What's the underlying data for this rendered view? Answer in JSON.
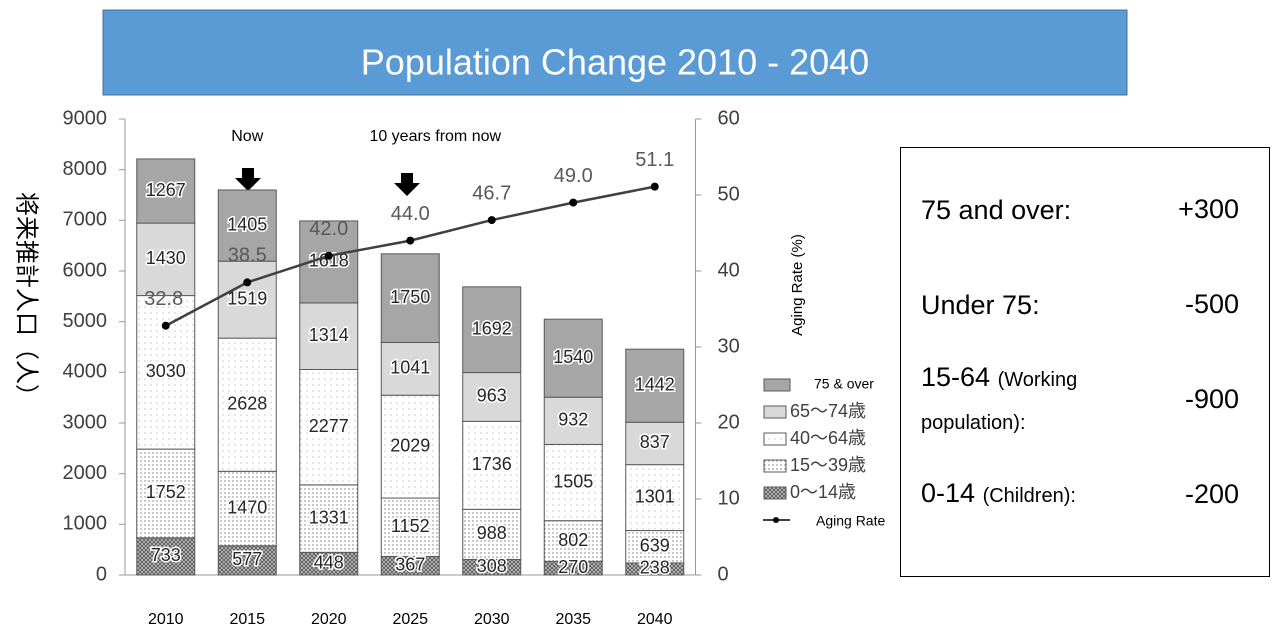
{
  "chart_data": {
    "type": "stacked-bar-line",
    "title": "Population Change 2010 - 2040",
    "ylabel": "将来推計人口（人）",
    "y2label": "Aging Rate (%)",
    "annotations": [
      {
        "text": "Now",
        "category": 1
      },
      {
        "text": "10 years from now",
        "category": 3
      }
    ],
    "categories": [
      "2010",
      "2015",
      "2020",
      "2025",
      "2030",
      "2035",
      "2040"
    ],
    "series": [
      {
        "name": "0～14歳",
        "color": "#bfbfbf",
        "pattern": "crosshatch",
        "values": [
          733,
          577,
          448,
          367,
          308,
          270,
          238
        ]
      },
      {
        "name": "15～39歳",
        "color": "#ffffff",
        "pattern": "dense-dots",
        "values": [
          1752,
          1470,
          1331,
          1152,
          988,
          802,
          639
        ]
      },
      {
        "name": "40～64歳",
        "color": "#ffffff",
        "pattern": "dots",
        "values": [
          3030,
          2628,
          2277,
          2029,
          1736,
          1505,
          1301
        ]
      },
      {
        "name": "65～74歳",
        "color": "#d9d9d9",
        "values": [
          1430,
          1519,
          1314,
          1041,
          963,
          932,
          837
        ]
      },
      {
        "name": "75 & over",
        "color": "#a6a6a6",
        "values": [
          1267,
          1405,
          1618,
          1750,
          1692,
          1540,
          1442
        ]
      },
      {
        "name": "Aging Rate",
        "color": "#404040",
        "axis": "y2",
        "values": [
          32.8,
          38.5,
          42.0,
          44.0,
          46.7,
          49.0,
          51.1
        ],
        "value_labels": [
          "32.8",
          "38.5",
          "42.0",
          "44.0",
          "46.7",
          "49.0",
          "51.1"
        ]
      }
    ],
    "ylim": [
      0,
      9000
    ],
    "yticks": [
      0,
      1000,
      2000,
      3000,
      4000,
      5000,
      6000,
      7000,
      8000,
      9000
    ],
    "y2lim": [
      0,
      60
    ],
    "y2ticks": [
      0,
      10,
      20,
      30,
      40,
      50,
      60
    ]
  },
  "summary": [
    {
      "label": "75 and over:",
      "value": "+300"
    },
    {
      "label": "Under 75:",
      "value": "-500"
    },
    {
      "label": "15-64",
      "note": "(Working population):",
      "value": "-900"
    },
    {
      "label": "0-14",
      "note": "(Children):",
      "value": "-200"
    }
  ]
}
